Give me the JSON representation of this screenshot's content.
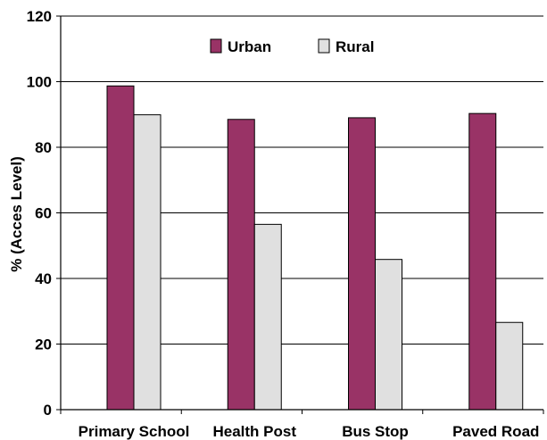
{
  "chart_data": {
    "type": "bar",
    "categories": [
      "Primary School",
      "Health Post",
      "Bus Stop",
      "Paved Road"
    ],
    "series": [
      {
        "name": "Urban",
        "values": [
          98.7,
          88.5,
          89.0,
          90.3
        ],
        "color": "#993366"
      },
      {
        "name": "Rural",
        "values": [
          89.9,
          56.5,
          45.8,
          26.6
        ],
        "color": "#e0e0e0"
      }
    ],
    "ylabel": "% (Acces Level)",
    "xlabel": "",
    "ylim": [
      0,
      120
    ],
    "yticks": [
      0,
      20,
      40,
      60,
      80,
      100,
      120
    ],
    "grid": true,
    "legend_position": "top-center",
    "colors": {
      "bar_border": "#000000",
      "grid": "#000000",
      "axis": "#000000"
    }
  }
}
